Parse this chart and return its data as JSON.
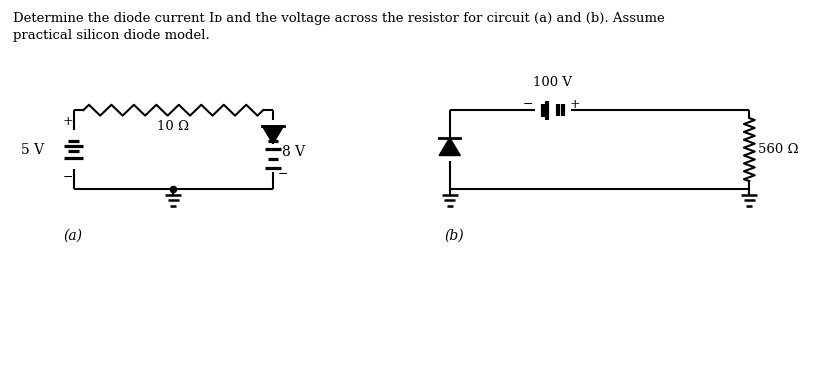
{
  "title_line1": "Determine the diode current Iᴅ and the voltage across the resistor for circuit (a) and (b). Assume",
  "title_line2": "practical silicon diode model.",
  "bg_color": "#ffffff",
  "line_color": "#000000",
  "label_a": "(a)",
  "label_b": "(b)",
  "circuit_a": {
    "battery_label": "5 V",
    "resistor_label": "10 Ω",
    "source_label": "8 V"
  },
  "circuit_b": {
    "battery_label": "100 V",
    "resistor_label": "560 Ω"
  }
}
